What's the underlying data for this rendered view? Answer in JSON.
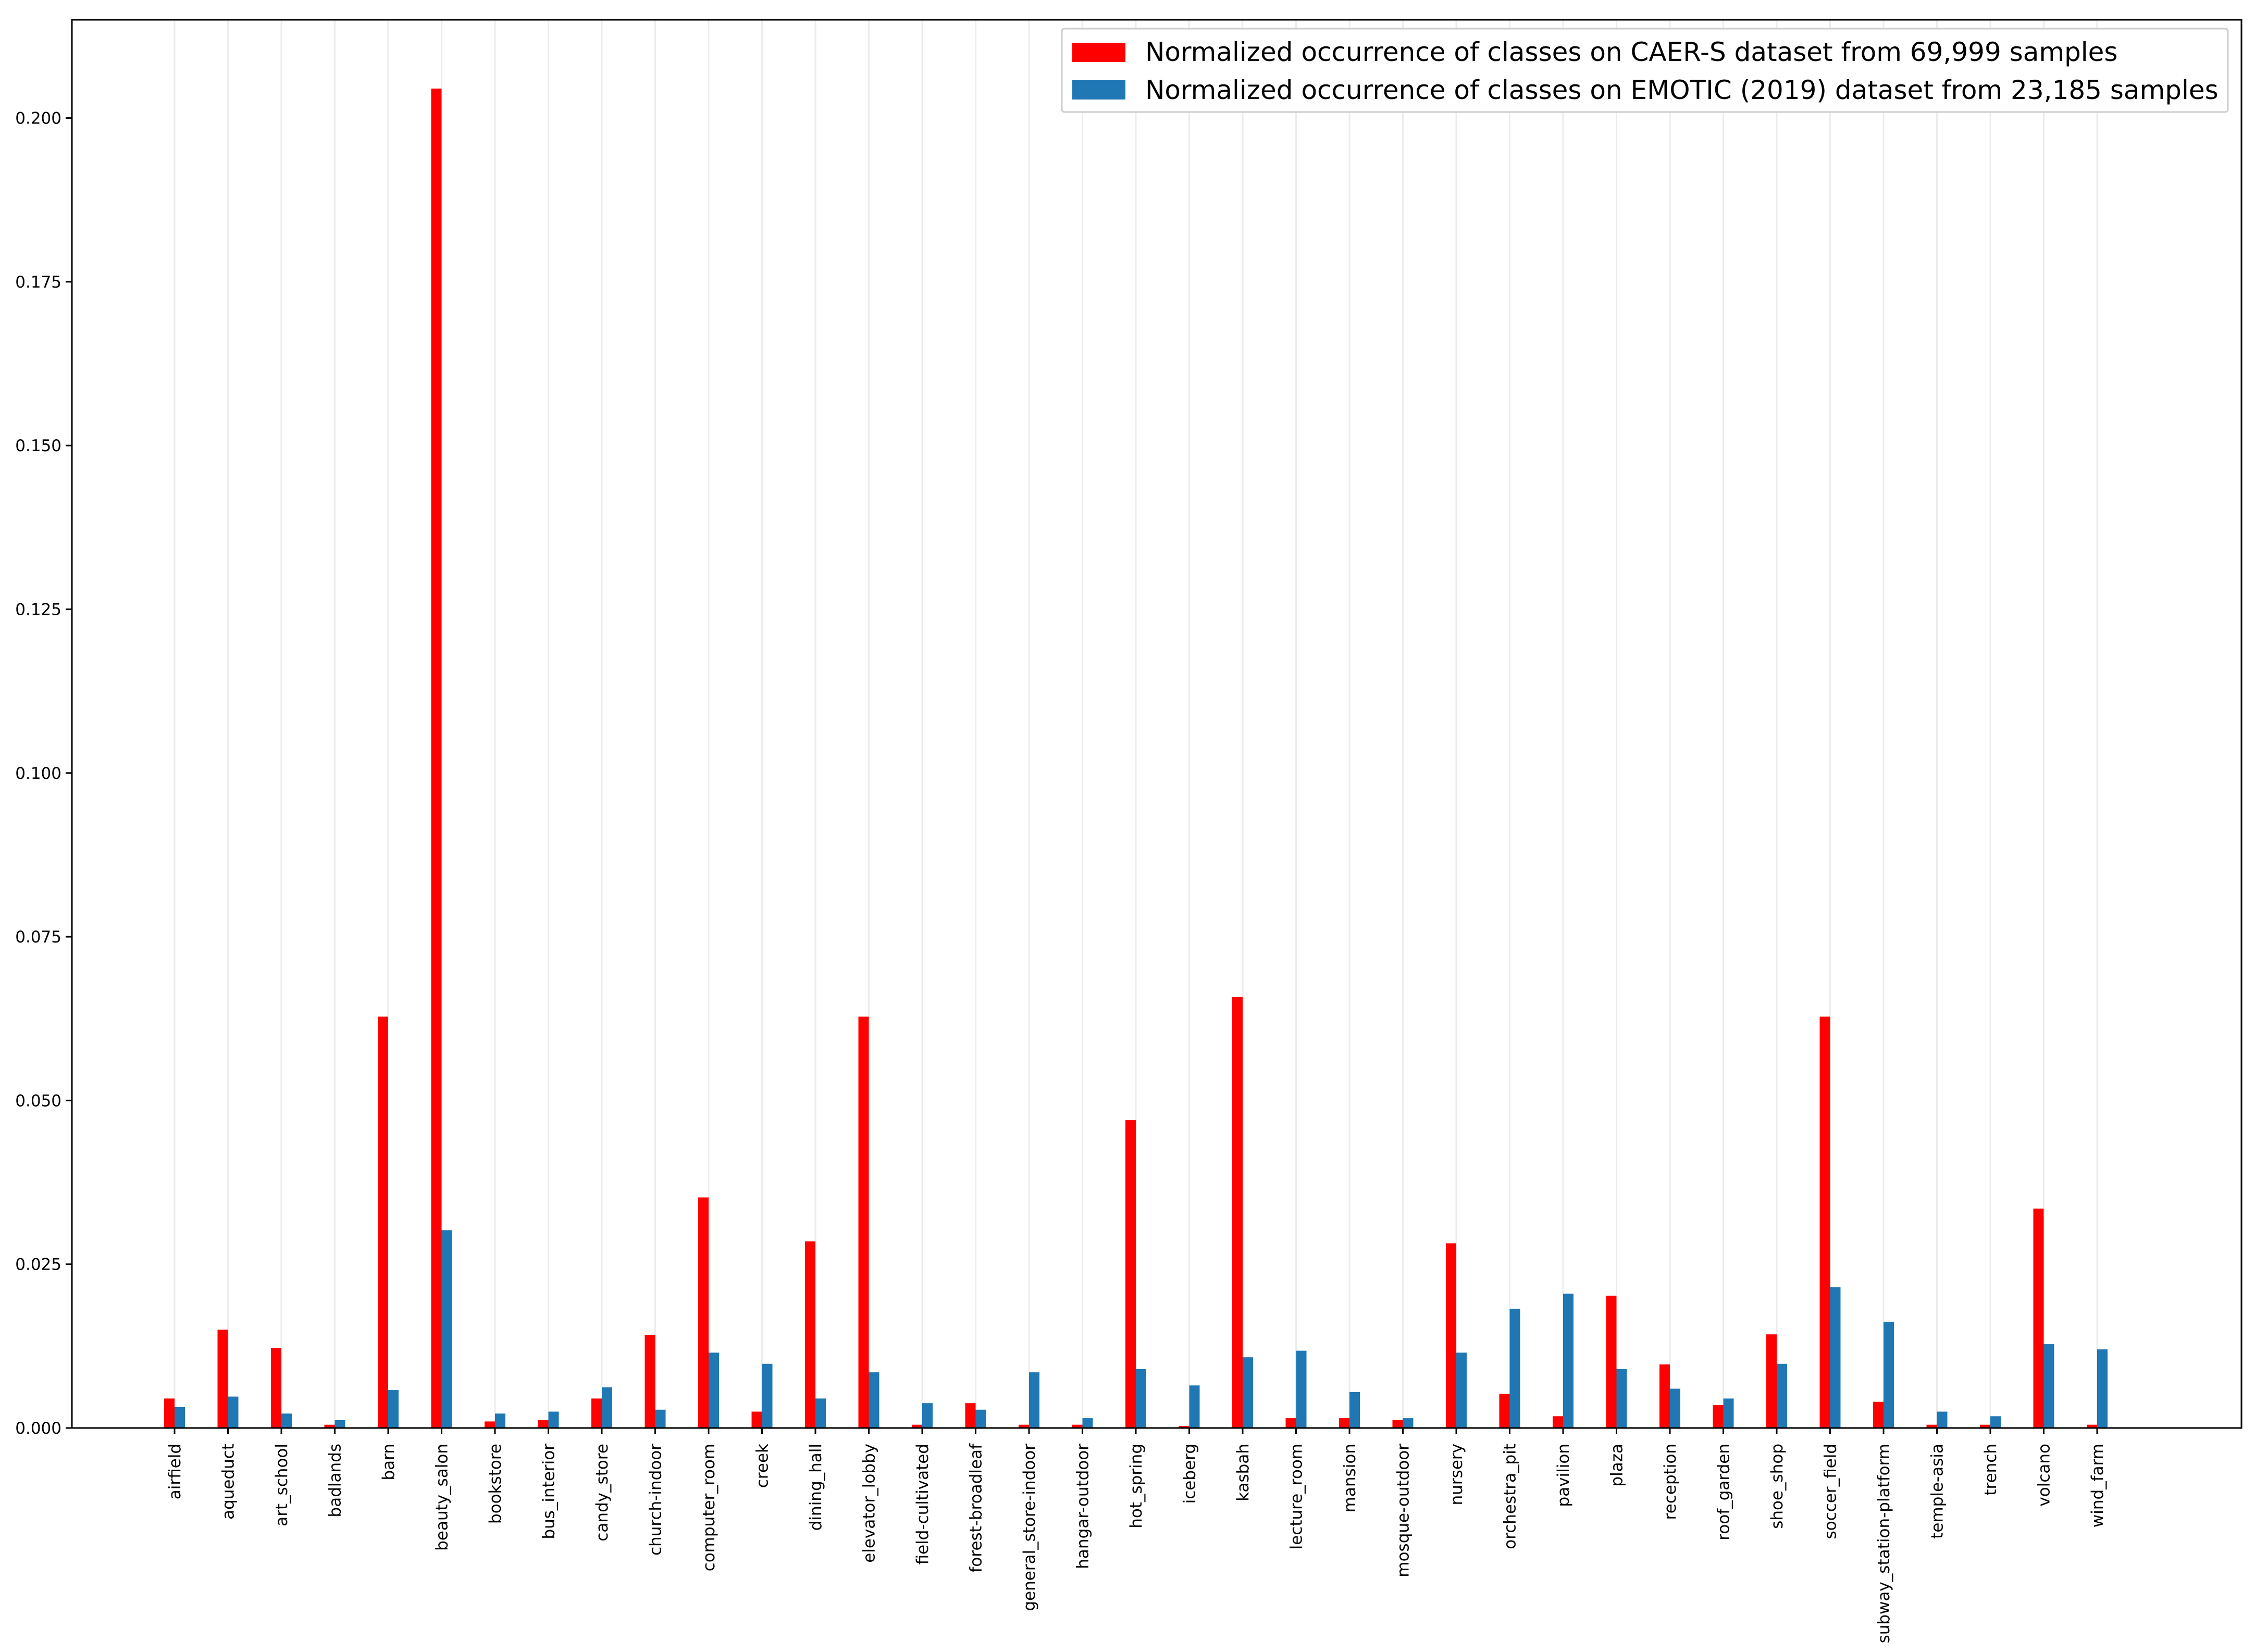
{
  "chart_data": {
    "type": "bar",
    "title": "",
    "xlabel": "",
    "ylabel": "",
    "ylim": [
      0,
      0.215
    ],
    "grid": "vertical",
    "legend_placement": "top-right",
    "yticks": [
      "0.000",
      "0.025",
      "0.050",
      "0.075",
      "0.100",
      "0.125",
      "0.150",
      "0.175",
      "0.200"
    ],
    "tick_labels": [
      "airfield",
      "aqueduct",
      "art_school",
      "badlands",
      "barn",
      "beauty_salon",
      "bookstore",
      "bus_interior",
      "candy_store",
      "church-indoor",
      "computer_room",
      "creek",
      "dining_hall",
      "elevator_lobby",
      "field-cultivated",
      "forest-broadleaf",
      "general_store-indoor",
      "hangar-outdoor",
      "hot_spring",
      "iceberg",
      "kasbah",
      "lecture_room",
      "mansion",
      "mosque-outdoor",
      "nursery",
      "orchestra_pit",
      "pavilion",
      "plaza",
      "reception",
      "roof_garden",
      "shoe_shop",
      "soccer_field",
      "subway_station-platform",
      "temple-asia",
      "trench",
      "volcano",
      "wind_farm"
    ],
    "series": [
      {
        "name": "Normalized occurrence of classes on CAER-S dataset from 69,999 samples",
        "color": "#ff0000",
        "values": [
          0.0045,
          0.015,
          0.0122,
          0.0005,
          0.0628,
          0.2045,
          0.001,
          0.0012,
          0.0045,
          0.0142,
          0.0352,
          0.0025,
          0.0285,
          0.0628,
          0.0005,
          0.0038,
          0.0005,
          0.0005,
          0.047,
          0.0003,
          0.0658,
          0.0015,
          0.0015,
          0.0012,
          0.0282,
          0.0052,
          0.0018,
          0.0202,
          0.0097,
          0.0035,
          0.0143,
          0.0628,
          0.004,
          0.0005,
          0.0005,
          0.0335,
          0.0005
        ]
      },
      {
        "name": "Normalized occurrence of classes on EMOTIC (2019) dataset from 23,185 samples",
        "color": "#1f77b4",
        "values": [
          0.0032,
          0.0048,
          0.0022,
          0.0012,
          0.0058,
          0.0302,
          0.0022,
          0.0025,
          0.0062,
          0.0028,
          0.0115,
          0.0098,
          0.0045,
          0.0085,
          0.0038,
          0.0028,
          0.0085,
          0.0015,
          0.009,
          0.0065,
          0.0108,
          0.0118,
          0.0055,
          0.0015,
          0.0115,
          0.0182,
          0.0205,
          0.009,
          0.006,
          0.0045,
          0.0098,
          0.0215,
          0.0162,
          0.0025,
          0.0018,
          0.0128,
          0.012
        ]
      }
    ]
  }
}
